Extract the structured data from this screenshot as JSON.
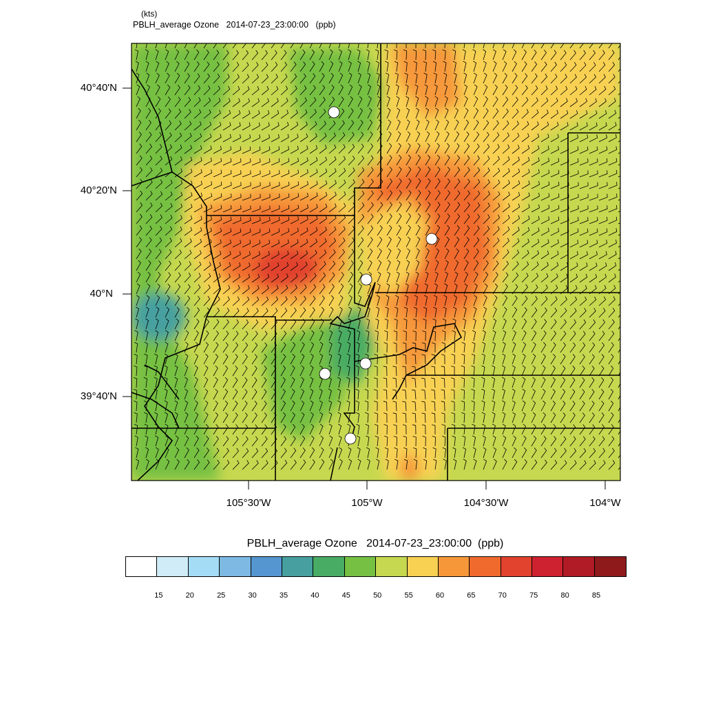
{
  "header": {
    "units_label": "(kts)",
    "title": "PBLH_average Ozone   2014-07-23_23:00:00   (ppb)"
  },
  "map": {
    "lat_labels": [
      "40°40'N",
      "40°20'N",
      "40°N",
      "39°40'N"
    ],
    "lon_labels": [
      "105°30'W",
      "105°W",
      "104°30'W",
      "104°W"
    ],
    "wind_barb_color": "#000000",
    "boundary_color": "#000000",
    "site_marker_color": "#ffffff",
    "site_count": 6
  },
  "colorbar": {
    "title": "PBLH_average Ozone   2014-07-23_23:00:00  (ppb)",
    "colors": [
      "#ffffff",
      "#cfecf7",
      "#a5dcf5",
      "#7db9e3",
      "#5596d0",
      "#47a09f",
      "#49ac64",
      "#76c043",
      "#c6d84f",
      "#f8d153",
      "#f6983a",
      "#f06a2d",
      "#e1432f",
      "#cf2230",
      "#b01b25",
      "#8e1a1c"
    ],
    "ticks": [
      "15",
      "20",
      "25",
      "30",
      "35",
      "40",
      "45",
      "50",
      "55",
      "60",
      "65",
      "70",
      "75",
      "80",
      "85"
    ]
  }
}
